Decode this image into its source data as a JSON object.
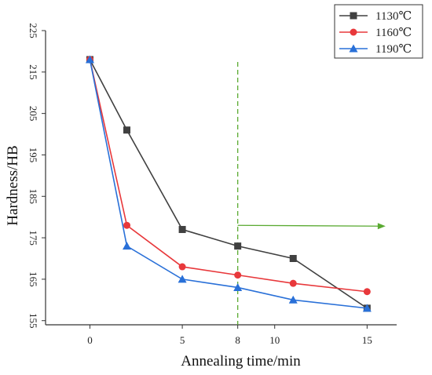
{
  "chart_data": {
    "type": "line",
    "xlabel": "Annealing time/min",
    "ylabel": "Hardness/HB",
    "xlim": [
      -2.4,
      16.6
    ],
    "ylim": [
      154,
      225
    ],
    "x_ticks": [
      0,
      5,
      8,
      10,
      15
    ],
    "y_ticks": [
      155,
      165,
      175,
      185,
      195,
      205,
      215,
      225
    ],
    "series": [
      {
        "name": "1130℃",
        "color": "#404040",
        "marker": "square",
        "x": [
          0,
          2,
          5,
          8,
          11,
          15
        ],
        "y": [
          218,
          201,
          177,
          173,
          170,
          158
        ]
      },
      {
        "name": "1160℃",
        "color": "#e8383b",
        "marker": "circle",
        "x": [
          0,
          2,
          5,
          8,
          11,
          15
        ],
        "y": [
          218,
          178,
          168,
          166,
          164,
          162
        ]
      },
      {
        "name": "1190℃",
        "color": "#2970d8",
        "marker": "triangle",
        "x": [
          0,
          2,
          5,
          8,
          11,
          15
        ],
        "y": [
          218,
          173,
          165,
          163,
          160,
          158
        ]
      }
    ],
    "annotations": {
      "vline_x": 8,
      "vline_color": "#5aaa32",
      "highlight_tick": "8",
      "arrow_color": "#5aaa32",
      "arrow_y": 178,
      "arrow_to_x": 16
    },
    "legend_position": "top-right",
    "grid": false
  }
}
